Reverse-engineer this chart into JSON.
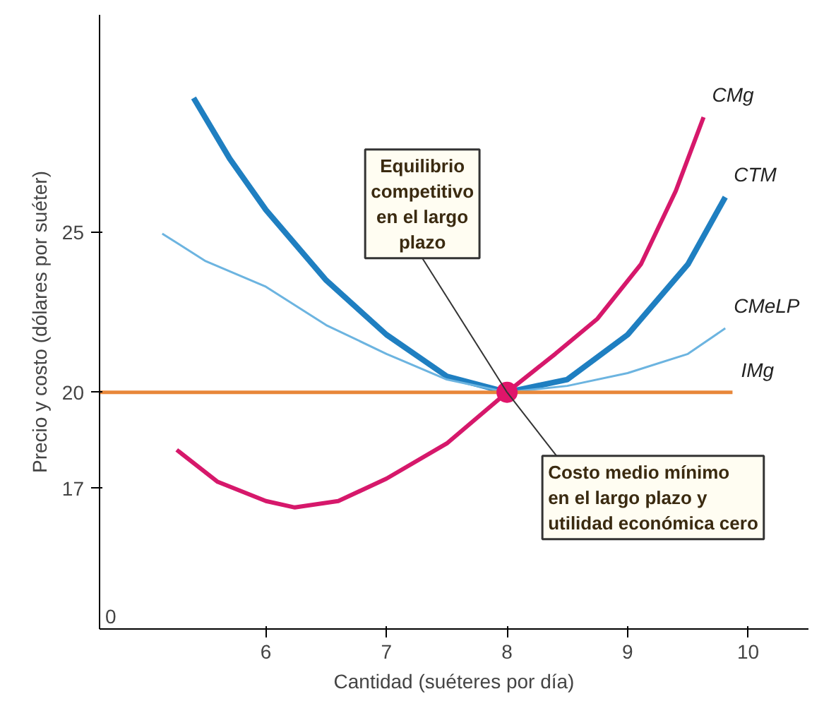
{
  "chart_data": {
    "type": "line",
    "xlabel": "Cantidad (suéteres por día)",
    "ylabel": "Precio y costo (dólares por suéter)",
    "xlim": [
      4.62,
      10.5
    ],
    "ylim": [
      12.6,
      31.8
    ],
    "xticks": [
      6,
      7,
      8,
      9,
      10
    ],
    "yticks": [
      17,
      20,
      25
    ],
    "grid": false,
    "marker": "none",
    "line_style": "solid",
    "series": [
      {
        "name": "CMg",
        "color": "#d6186b",
        "x": [
          5.26,
          5.6,
          6.0,
          6.24,
          6.6,
          7.0,
          7.5,
          8.0,
          8.4,
          8.75,
          9.11,
          9.4,
          9.63
        ],
        "values": [
          18.2,
          17.2,
          16.6,
          16.4,
          16.6,
          17.3,
          18.4,
          20.0,
          21.2,
          22.3,
          24.0,
          26.3,
          28.6
        ]
      },
      {
        "name": "CTM",
        "color": "#1f7fc1",
        "x": [
          5.4,
          5.7,
          6.0,
          6.5,
          7.0,
          7.5,
          8.0,
          8.5,
          9.0,
          9.5,
          9.81
        ],
        "values": [
          29.2,
          27.3,
          25.7,
          23.5,
          21.8,
          20.5,
          20.0,
          20.4,
          21.8,
          24.0,
          26.1
        ]
      },
      {
        "name": "CMeLP",
        "color": "#6cb4e0",
        "x": [
          5.14,
          5.5,
          6.0,
          6.5,
          7.0,
          7.5,
          8.0,
          8.5,
          9.0,
          9.5,
          9.81
        ],
        "values": [
          24.96,
          24.1,
          23.3,
          22.1,
          21.2,
          20.4,
          20.0,
          20.2,
          20.6,
          21.2,
          22.0
        ]
      },
      {
        "name": "IMg",
        "color": "#e8873a",
        "x": [
          4.62,
          9.87
        ],
        "values": [
          20,
          20
        ]
      },
      {
        "type": "scatter",
        "marker": "circle",
        "color": "#e0156a",
        "x": [
          8
        ],
        "values": [
          20
        ]
      }
    ],
    "annotations": [
      "0",
      {
        "text": "Equilibrio\ncompetitivo\nen el largo\nplazo",
        "x": 8,
        "y": 20
      },
      {
        "text": "Costo medio mínimo\nen el largo plazo y\nutilidad económica cero",
        "x": 8,
        "y": 20
      }
    ]
  }
}
